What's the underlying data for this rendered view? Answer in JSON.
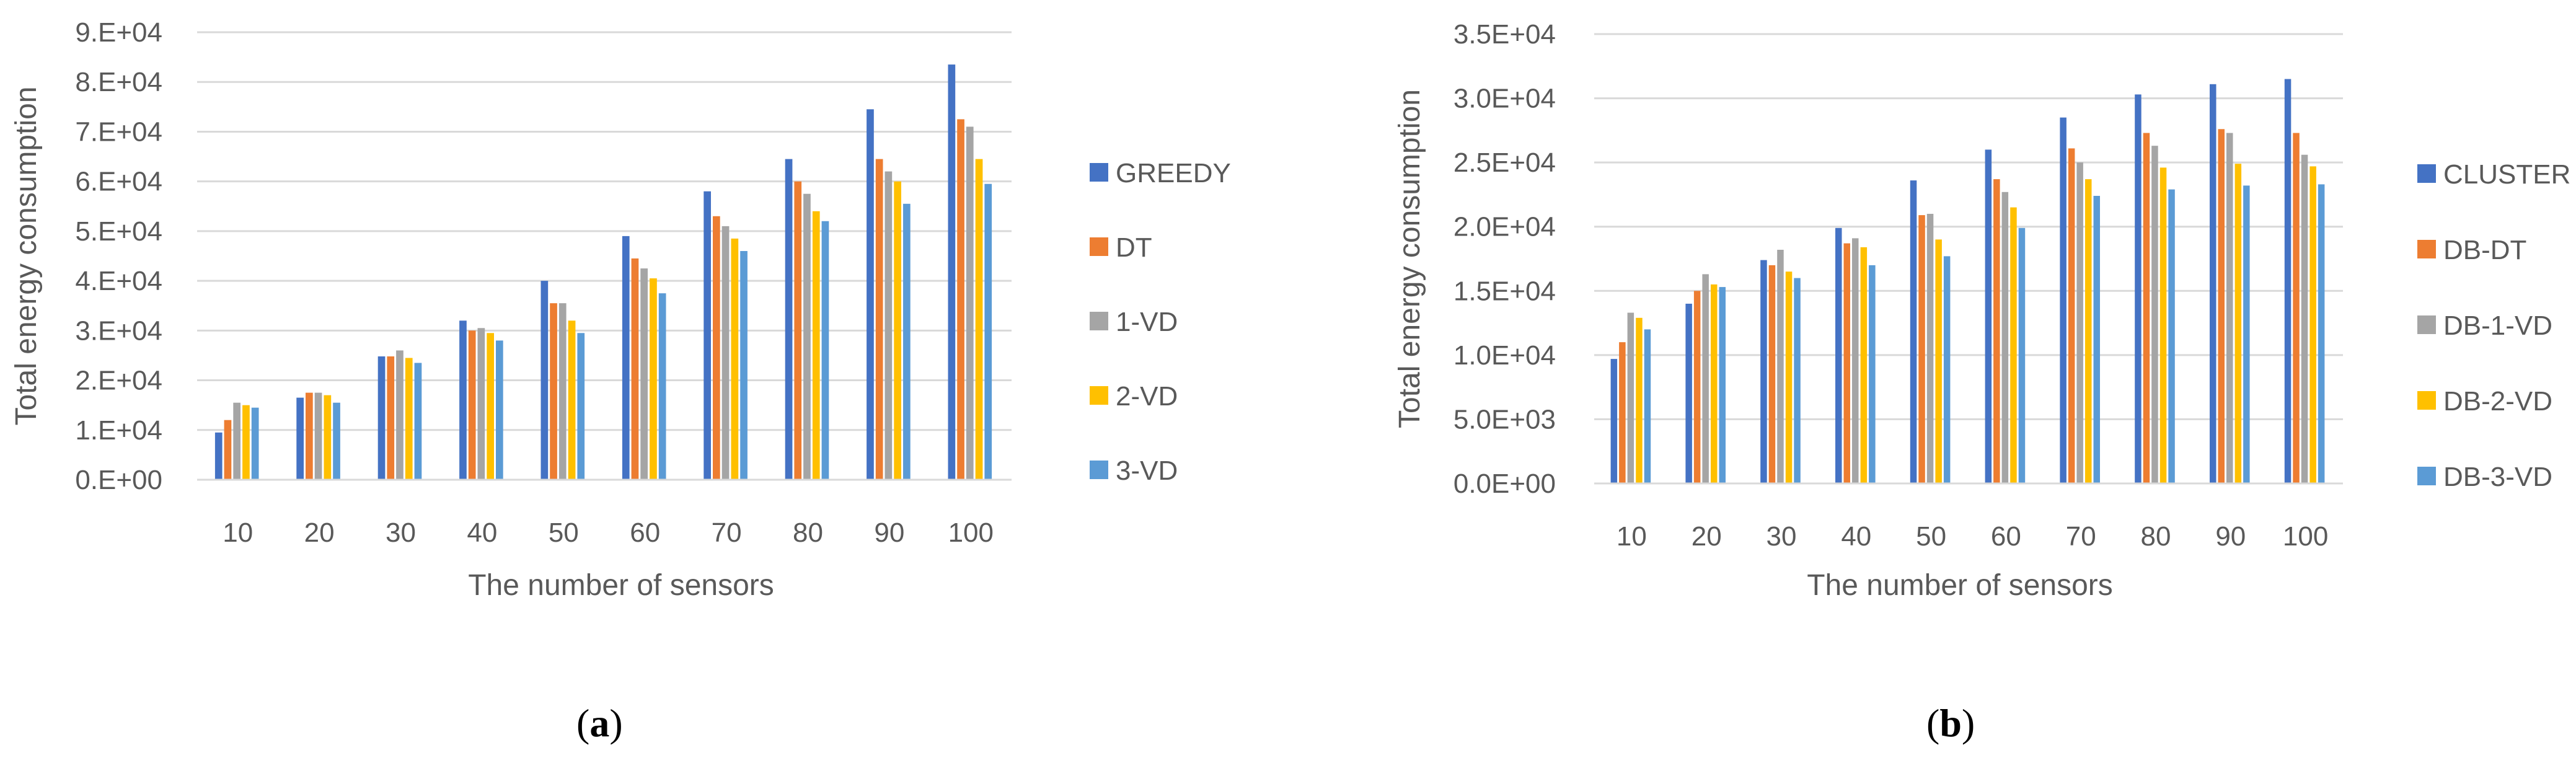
{
  "chart_data": [
    {
      "type": "bar",
      "panel": "a",
      "categories": [
        "10",
        "20",
        "30",
        "40",
        "50",
        "60",
        "70",
        "80",
        "90",
        "100"
      ],
      "series": [
        {
          "name": "GREEDY",
          "color": "#4472C4",
          "values": [
            9500,
            16500,
            24800,
            32000,
            40000,
            49000,
            58000,
            64500,
            74500,
            83500
          ]
        },
        {
          "name": "DT",
          "color": "#ED7D31",
          "values": [
            12000,
            17500,
            24800,
            30000,
            35500,
            44500,
            53000,
            60000,
            64500,
            72500
          ]
        },
        {
          "name": "1-VD",
          "color": "#A5A5A5",
          "values": [
            15500,
            17500,
            26000,
            30500,
            35500,
            42500,
            51000,
            57500,
            62000,
            71000
          ]
        },
        {
          "name": "2-VD",
          "color": "#FFC000",
          "values": [
            15000,
            17000,
            24500,
            29500,
            32000,
            40500,
            48500,
            54000,
            60000,
            64500
          ]
        },
        {
          "name": "3-VD",
          "color": "#5B9BD5",
          "values": [
            14500,
            15500,
            23500,
            28000,
            29500,
            37500,
            46000,
            52000,
            55500,
            59500
          ]
        }
      ],
      "y_ticks": [
        "0.E+00",
        "1.E+04",
        "2.E+04",
        "3.E+04",
        "4.E+04",
        "5.E+04",
        "6.E+04",
        "7.E+04",
        "8.E+04",
        "9.E+04"
      ],
      "ylim": [
        0,
        90000
      ],
      "xlabel": "The number of sensors",
      "ylabel": "Total energy consumption",
      "legend": "right",
      "grid": true,
      "caption": "a"
    },
    {
      "type": "bar",
      "panel": "b",
      "categories": [
        "10",
        "20",
        "30",
        "40",
        "50",
        "60",
        "70",
        "80",
        "90",
        "100"
      ],
      "series": [
        {
          "name": "CLUSTER",
          "color": "#4472C4",
          "values": [
            9700,
            14000,
            17400,
            19900,
            23600,
            26000,
            28500,
            30300,
            31100,
            31500
          ]
        },
        {
          "name": "DB-DT",
          "color": "#ED7D31",
          "values": [
            11000,
            15000,
            17000,
            18700,
            20900,
            23700,
            26100,
            27300,
            27600,
            27300
          ]
        },
        {
          "name": "DB-1-VD",
          "color": "#A5A5A5",
          "values": [
            13300,
            16300,
            18200,
            19100,
            21000,
            22700,
            25000,
            26300,
            27300,
            25600
          ]
        },
        {
          "name": "DB-2-VD",
          "color": "#FFC000",
          "values": [
            12900,
            15500,
            16500,
            18400,
            19000,
            21500,
            23700,
            24600,
            24900,
            24700
          ]
        },
        {
          "name": "DB-3-VD",
          "color": "#5B9BD5",
          "values": [
            12000,
            15300,
            16000,
            17000,
            17700,
            19900,
            22400,
            22900,
            23200,
            23300
          ]
        }
      ],
      "y_ticks": [
        "0.0E+00",
        "5.0E+03",
        "1.0E+04",
        "1.5E+04",
        "2.0E+04",
        "2.5E+04",
        "3.0E+04",
        "3.5E+04"
      ],
      "ylim": [
        0,
        35000
      ],
      "xlabel": "The number of sensors",
      "ylabel": "Total energy consumption",
      "legend": "right",
      "grid": true,
      "caption": "b"
    }
  ]
}
